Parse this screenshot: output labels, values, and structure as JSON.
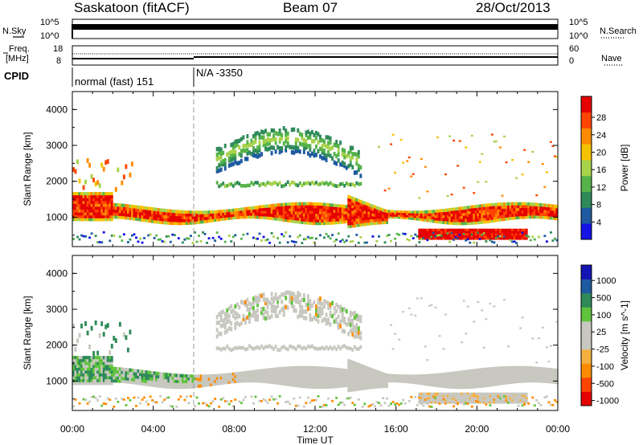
{
  "header": {
    "station": "Saskatoon (fitACF)",
    "beam": "Beam 07",
    "date": "28/Oct/2013"
  },
  "panels": {
    "noise": {
      "left_label": "N.Sky",
      "right_label": "N.Search",
      "left_ticks": [
        "10^5",
        "10^0"
      ],
      "right_ticks": [
        "10^5",
        "10^0"
      ]
    },
    "freq": {
      "left_label": "Freq.",
      "left_unit": "[MHz]",
      "right_label": "Nave",
      "left_ticks": [
        "18",
        "8"
      ],
      "right_ticks": [
        "60",
        "0"
      ]
    },
    "cpid": {
      "label": "CPID",
      "segments": [
        "normal (fast) 151",
        "N/A -3350"
      ]
    }
  },
  "colors": {
    "power_scale": [
      "#1414e6",
      "#1e5aa0",
      "#2f8a5a",
      "#56b34a",
      "#a8d24a",
      "#f5c200",
      "#ff8c00",
      "#ff4500",
      "#e60000"
    ],
    "velocity_scale": [
      "#e60000",
      "#ff4500",
      "#ff8c00",
      "#f5b040",
      "#c8c8c0",
      "#c8c8c0",
      "#5fc43c",
      "#2f8a5a",
      "#1e5aa0",
      "#1414b4"
    ]
  },
  "chart_data": [
    {
      "type": "heatmap",
      "title": "Power",
      "xlabel": "Time UT",
      "ylabel": "Slant Range [km]",
      "xlim": [
        "00:00",
        "24:00"
      ],
      "ylim": [
        180,
        4500
      ],
      "x_ticks": [
        "00:00",
        "04:00",
        "08:00",
        "12:00",
        "16:00",
        "20:00",
        "00:00"
      ],
      "y_ticks": [
        "1000",
        "2000",
        "3000",
        "4000"
      ],
      "colorbar": {
        "label": "Power [dB]",
        "ticks": [
          "4",
          "8",
          "12",
          "16",
          "20",
          "24",
          "28"
        ],
        "range": [
          0,
          30
        ]
      },
      "features": [
        {
          "name": "main band",
          "t_start_h": 0.0,
          "t_end_h": 24.0,
          "range_km": [
            850,
            1350
          ],
          "power_db": 28
        },
        {
          "name": "low fan",
          "t_start_h": 17.0,
          "t_end_h": 22.5,
          "range_km": [
            380,
            700
          ],
          "power_db": 28
        },
        {
          "name": "upper echoes",
          "t_start_h": 7.0,
          "t_end_h": 14.0,
          "range_km": [
            1800,
            3300
          ],
          "power_db": 10
        }
      ]
    },
    {
      "type": "heatmap",
      "title": "Velocity",
      "xlabel": "Time UT",
      "ylabel": "Slant Range [km]",
      "xlim": [
        "00:00",
        "24:00"
      ],
      "ylim": [
        180,
        4500
      ],
      "x_ticks": [
        "00:00",
        "04:00",
        "08:00",
        "12:00",
        "16:00",
        "20:00",
        "00:00"
      ],
      "y_ticks": [
        "1000",
        "2000",
        "3000",
        "4000"
      ],
      "colorbar": {
        "label": "Velocity [m s^-1]",
        "ticks": [
          "1000",
          "500",
          "100",
          "25",
          "-25",
          "-100",
          "-500",
          "-1000"
        ]
      },
      "features": [
        {
          "name": "main band",
          "t_start_h": 0.0,
          "t_end_h": 24.0,
          "range_km": [
            850,
            1350
          ],
          "velocity_ms": 0
        },
        {
          "name": "green region",
          "t_start_h": 0.0,
          "t_end_h": 6.0,
          "range_km": [
            950,
            1750
          ],
          "velocity_ms": 150
        },
        {
          "name": "upper echoes",
          "t_start_h": 7.0,
          "t_end_h": 14.0,
          "range_km": [
            1800,
            3300
          ],
          "velocity_ms": -40
        }
      ]
    }
  ]
}
